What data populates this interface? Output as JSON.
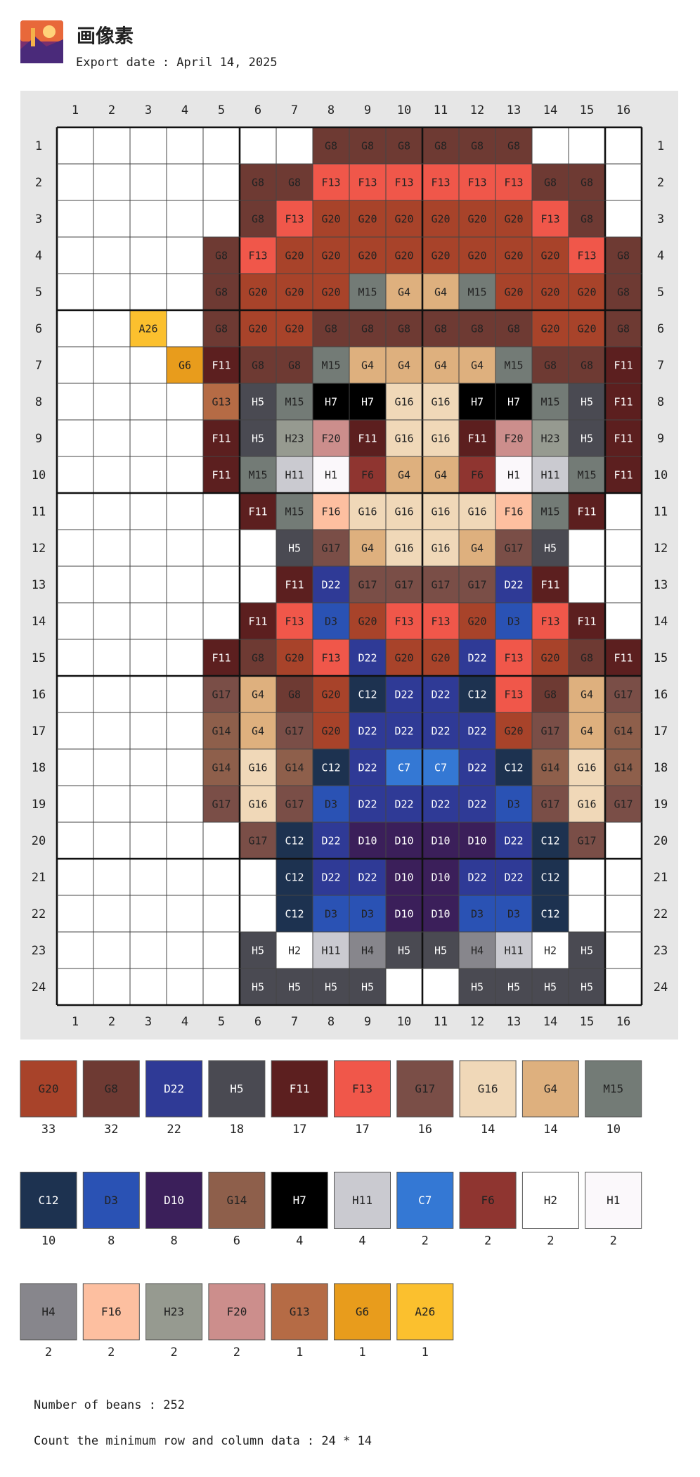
{
  "header": {
    "title": "画像素",
    "export_date": "Export date : April 14, 2025"
  },
  "columns": [
    "1",
    "2",
    "3",
    "4",
    "5",
    "6",
    "7",
    "8",
    "9",
    "10",
    "11",
    "12",
    "13",
    "14",
    "15",
    "16"
  ],
  "rows": [
    "1",
    "2",
    "3",
    "4",
    "5",
    "6",
    "7",
    "8",
    "9",
    "10",
    "11",
    "12",
    "13",
    "14",
    "15",
    "16",
    "17",
    "18",
    "19",
    "20",
    "21",
    "22",
    "23",
    "24"
  ],
  "grid": [
    [
      null,
      null,
      null,
      null,
      null,
      null,
      null,
      "G8",
      "G8",
      "G8",
      "G8",
      "G8",
      "G8",
      null,
      null,
      null
    ],
    [
      null,
      null,
      null,
      null,
      null,
      "G8",
      "G8",
      "F13",
      "F13",
      "F13",
      "F13",
      "F13",
      "F13",
      "G8",
      "G8",
      null
    ],
    [
      null,
      null,
      null,
      null,
      null,
      "G8",
      "F13",
      "G20",
      "G20",
      "G20",
      "G20",
      "G20",
      "G20",
      "F13",
      "G8",
      null
    ],
    [
      null,
      null,
      null,
      null,
      "G8",
      "F13",
      "G20",
      "G20",
      "G20",
      "G20",
      "G20",
      "G20",
      "G20",
      "G20",
      "F13",
      "G8"
    ],
    [
      null,
      null,
      null,
      null,
      "G8",
      "G20",
      "G20",
      "G20",
      "M15",
      "G4",
      "G4",
      "M15",
      "G20",
      "G20",
      "G20",
      "G8"
    ],
    [
      null,
      null,
      "A26",
      null,
      "G8",
      "G20",
      "G20",
      "G8",
      "G8",
      "G8",
      "G8",
      "G8",
      "G8",
      "G20",
      "G20",
      "G8"
    ],
    [
      null,
      null,
      null,
      "G6",
      "F11",
      "G8",
      "G8",
      "M15",
      "G4",
      "G4",
      "G4",
      "G4",
      "M15",
      "G8",
      "G8",
      "F11"
    ],
    [
      null,
      null,
      null,
      null,
      "G13",
      "H5",
      "M15",
      "H7",
      "H7",
      "G16",
      "G16",
      "H7",
      "H7",
      "M15",
      "H5",
      "F11"
    ],
    [
      null,
      null,
      null,
      null,
      "F11",
      "H5",
      "H23",
      "F20",
      "F11",
      "G16",
      "G16",
      "F11",
      "F20",
      "H23",
      "H5",
      "F11"
    ],
    [
      null,
      null,
      null,
      null,
      "F11",
      "M15",
      "H11",
      "H1",
      "F6",
      "G4",
      "G4",
      "F6",
      "H1",
      "H11",
      "M15",
      "F11"
    ],
    [
      null,
      null,
      null,
      null,
      null,
      "F11",
      "M15",
      "F16",
      "G16",
      "G16",
      "G16",
      "G16",
      "F16",
      "M15",
      "F11",
      null
    ],
    [
      null,
      null,
      null,
      null,
      null,
      null,
      "H5",
      "G17",
      "G4",
      "G16",
      "G16",
      "G4",
      "G17",
      "H5",
      null,
      null
    ],
    [
      null,
      null,
      null,
      null,
      null,
      null,
      "F11",
      "D22",
      "G17",
      "G17",
      "G17",
      "G17",
      "D22",
      "F11",
      null,
      null
    ],
    [
      null,
      null,
      null,
      null,
      null,
      "F11",
      "F13",
      "D3",
      "G20",
      "F13",
      "F13",
      "G20",
      "D3",
      "F13",
      "F11",
      null
    ],
    [
      null,
      null,
      null,
      null,
      "F11",
      "G8",
      "G20",
      "F13",
      "D22",
      "G20",
      "G20",
      "D22",
      "F13",
      "G20",
      "G8",
      "F11"
    ],
    [
      null,
      null,
      null,
      null,
      "G17",
      "G4",
      "G8",
      "G20",
      "C12",
      "D22",
      "D22",
      "C12",
      "F13",
      "G8",
      "G4",
      "G17"
    ],
    [
      null,
      null,
      null,
      null,
      "G14",
      "G4",
      "G17",
      "G20",
      "D22",
      "D22",
      "D22",
      "D22",
      "G20",
      "G17",
      "G4",
      "G14"
    ],
    [
      null,
      null,
      null,
      null,
      "G14",
      "G16",
      "G14",
      "C12",
      "D22",
      "C7",
      "C7",
      "D22",
      "C12",
      "G14",
      "G16",
      "G14"
    ],
    [
      null,
      null,
      null,
      null,
      "G17",
      "G16",
      "G17",
      "D3",
      "D22",
      "D22",
      "D22",
      "D22",
      "D3",
      "G17",
      "G16",
      "G17"
    ],
    [
      null,
      null,
      null,
      null,
      null,
      "G17",
      "C12",
      "D22",
      "D10",
      "D10",
      "D10",
      "D10",
      "D22",
      "C12",
      "G17",
      null
    ],
    [
      null,
      null,
      null,
      null,
      null,
      null,
      "C12",
      "D22",
      "D22",
      "D10",
      "D10",
      "D22",
      "D22",
      "C12",
      null,
      null
    ],
    [
      null,
      null,
      null,
      null,
      null,
      null,
      "C12",
      "D3",
      "D3",
      "D10",
      "D10",
      "D3",
      "D3",
      "C12",
      null,
      null
    ],
    [
      null,
      null,
      null,
      null,
      null,
      "H5",
      "H2",
      "H11",
      "H4",
      "H5",
      "H5",
      "H4",
      "H11",
      "H2",
      "H5",
      null
    ],
    [
      null,
      null,
      null,
      null,
      null,
      "H5",
      "H5",
      "H5",
      "H5",
      null,
      null,
      "H5",
      "H5",
      "H5",
      "H5",
      null
    ]
  ],
  "palette": [
    {
      "code": "G20",
      "color": "#a8432a",
      "text_color": "#222222",
      "count": 33
    },
    {
      "code": "G8",
      "color": "#6e3a33",
      "text_color": "#222222",
      "count": 32
    },
    {
      "code": "D22",
      "color": "#2f3a96",
      "text_color": "#ffffff",
      "count": 22
    },
    {
      "code": "H5",
      "color": "#4a4a52",
      "text_color": "#ffffff",
      "count": 18
    },
    {
      "code": "F11",
      "color": "#5c1f1f",
      "text_color": "#ffffff",
      "count": 17
    },
    {
      "code": "F13",
      "color": "#f0574a",
      "text_color": "#222222",
      "count": 17
    },
    {
      "code": "G17",
      "color": "#7a4e47",
      "text_color": "#222222",
      "count": 16
    },
    {
      "code": "G16",
      "color": "#f0d8b8",
      "text_color": "#222222",
      "count": 14
    },
    {
      "code": "G4",
      "color": "#deb07e",
      "text_color": "#222222",
      "count": 14
    },
    {
      "code": "M15",
      "color": "#737b76",
      "text_color": "#222222",
      "count": 10
    },
    {
      "code": "C12",
      "color": "#1d3250",
      "text_color": "#ffffff",
      "count": 10
    },
    {
      "code": "D3",
      "color": "#2a52b4",
      "text_color": "#222222",
      "count": 8
    },
    {
      "code": "D10",
      "color": "#3b1f5a",
      "text_color": "#ffffff",
      "count": 8
    },
    {
      "code": "G14",
      "color": "#8e5f4b",
      "text_color": "#222222",
      "count": 6
    },
    {
      "code": "H7",
      "color": "#000000",
      "text_color": "#ffffff",
      "count": 4
    },
    {
      "code": "H11",
      "color": "#cacad0",
      "text_color": "#222222",
      "count": 4
    },
    {
      "code": "C7",
      "color": "#3478d4",
      "text_color": "#ffffff",
      "count": 2
    },
    {
      "code": "F6",
      "color": "#8f3530",
      "text_color": "#222222",
      "count": 2
    },
    {
      "code": "H2",
      "color": "#ffffff",
      "text_color": "#222222",
      "count": 2
    },
    {
      "code": "H1",
      "color": "#fbf8fb",
      "text_color": "#222222",
      "count": 2
    },
    {
      "code": "H4",
      "color": "#87868c",
      "text_color": "#222222",
      "count": 2
    },
    {
      "code": "F16",
      "color": "#fdbfa0",
      "text_color": "#222222",
      "count": 2
    },
    {
      "code": "H23",
      "color": "#969a90",
      "text_color": "#222222",
      "count": 2
    },
    {
      "code": "F20",
      "color": "#cc8e8c",
      "text_color": "#222222",
      "count": 2
    },
    {
      "code": "G13",
      "color": "#b56b45",
      "text_color": "#222222",
      "count": 1
    },
    {
      "code": "G6",
      "color": "#e89c1c",
      "text_color": "#222222",
      "count": 1
    },
    {
      "code": "A26",
      "color": "#fbc02e",
      "text_color": "#222222",
      "count": 1
    }
  ],
  "footer": {
    "beans": "Number of beans : 252",
    "min_size": "Count the minimum row and column data : 24 * 14"
  }
}
